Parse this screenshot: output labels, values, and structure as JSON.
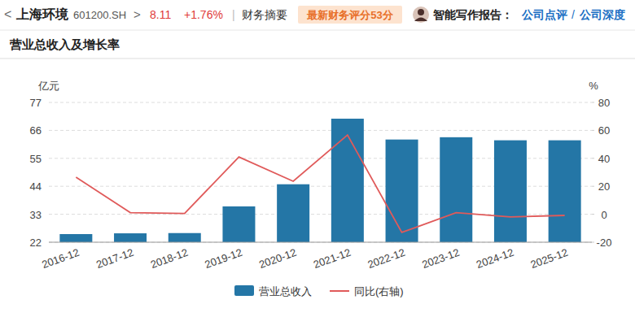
{
  "header": {
    "back": "<",
    "company": "上海环境",
    "code": "601200.SH",
    "forward": ">",
    "price": "8.11",
    "change": "+1.76%",
    "separator": "|",
    "summary": "财务摘要",
    "score_badge": "最新财务评分53分",
    "report_label": "智能写作报告：",
    "links": [
      "公司点评",
      "公司深度"
    ],
    "link_separator": "/"
  },
  "chart_data": {
    "type": "bar",
    "title": "营业总收入及增长率",
    "y_label": "亿元",
    "y2_label": "%",
    "categories": [
      "2016-12",
      "2017-12",
      "2018-12",
      "2019-12",
      "2020-12",
      "2021-12",
      "2022-12",
      "2023-12",
      "2024-12",
      "2025-12"
    ],
    "series": [
      {
        "name": "营业总收入",
        "type": "bar",
        "color": "#2476a6",
        "values": [
          25.2,
          25.5,
          25.6,
          36.1,
          44.8,
          70.6,
          62.4,
          63.3,
          62.1,
          62.1
        ]
      },
      {
        "name": "同比(右轴)",
        "type": "line",
        "axis": "y2",
        "color": "#e05a5a",
        "values": [
          26.5,
          1.2,
          0.6,
          41,
          23.6,
          56.7,
          -13,
          1.2,
          -1.9,
          -0.8
        ]
      }
    ],
    "ylim": [
      22,
      77
    ],
    "yticks": [
      22,
      33,
      44,
      55,
      66,
      77
    ],
    "y2lim": [
      -20,
      80
    ],
    "y2ticks": [
      -20,
      0,
      20,
      40,
      60,
      80
    ],
    "grid": true,
    "legend": "bottom"
  }
}
